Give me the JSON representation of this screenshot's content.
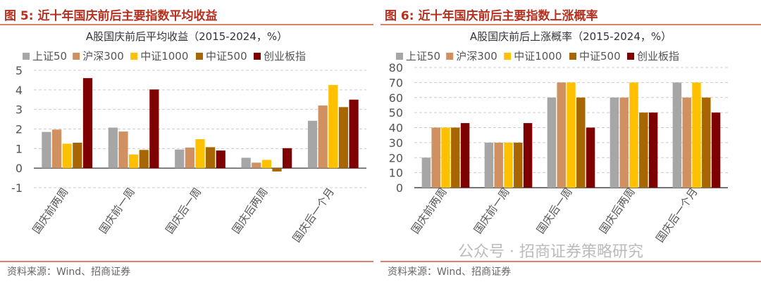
{
  "colors": {
    "title": "#b5301f",
    "series": [
      "#a6a6a6",
      "#d09060",
      "#ffc000",
      "#a86600",
      "#7f0000"
    ]
  },
  "watermark": "公众号 · 招商证券策略研究",
  "panels": [
    {
      "title": "图 5:  近十年国庆前后主要指数平均收益",
      "source": "资料来源：Wind、招商证券"
    },
    {
      "title": "图 6:  近十年国庆前后主要指数上涨概率",
      "source": "资料来源：Wind、招商证券"
    }
  ],
  "chart_data": [
    {
      "type": "bar",
      "title": "A股国庆前后平均收益（2015-2024，%）",
      "categories": [
        "国庆前两周",
        "国庆前一周",
        "国庆后一周",
        "国庆后两周",
        "国庆后一个月"
      ],
      "series": [
        {
          "name": "上证50",
          "values": [
            1.85,
            2.07,
            0.95,
            0.53,
            2.42
          ]
        },
        {
          "name": "沪深300",
          "values": [
            1.97,
            1.87,
            1.05,
            0.28,
            3.2
          ]
        },
        {
          "name": "中证1000",
          "values": [
            1.25,
            0.7,
            1.48,
            0.42,
            4.25
          ]
        },
        {
          "name": "中证500",
          "values": [
            1.3,
            0.93,
            1.07,
            -0.17,
            3.12
          ]
        },
        {
          "name": "创业板指",
          "values": [
            4.6,
            4.02,
            0.9,
            1.02,
            3.5
          ]
        }
      ],
      "ylim": [
        -1,
        5
      ],
      "yticks": [
        -1,
        0,
        1,
        2,
        3,
        4,
        5
      ],
      "grid": true,
      "legend": "top"
    },
    {
      "type": "bar",
      "title": "A股国庆前后上涨概率（2015-2024，%）",
      "categories": [
        "国庆前两周",
        "国庆前一周",
        "国庆后一周",
        "国庆后两周",
        "国庆后一个月"
      ],
      "series": [
        {
          "name": "上证50",
          "values": [
            20,
            30,
            60,
            60,
            70
          ]
        },
        {
          "name": "沪深300",
          "values": [
            40,
            30,
            70,
            60,
            60
          ]
        },
        {
          "name": "中证1000",
          "values": [
            40,
            30,
            70,
            70,
            70
          ]
        },
        {
          "name": "中证500",
          "values": [
            40,
            30,
            60,
            50,
            60
          ]
        },
        {
          "name": "创业板指",
          "values": [
            43,
            43,
            40,
            50,
            50
          ]
        }
      ],
      "ylim": [
        0,
        80
      ],
      "yticks": [
        0,
        10,
        20,
        30,
        40,
        50,
        60,
        70,
        80
      ],
      "grid": true,
      "legend": "top"
    }
  ]
}
